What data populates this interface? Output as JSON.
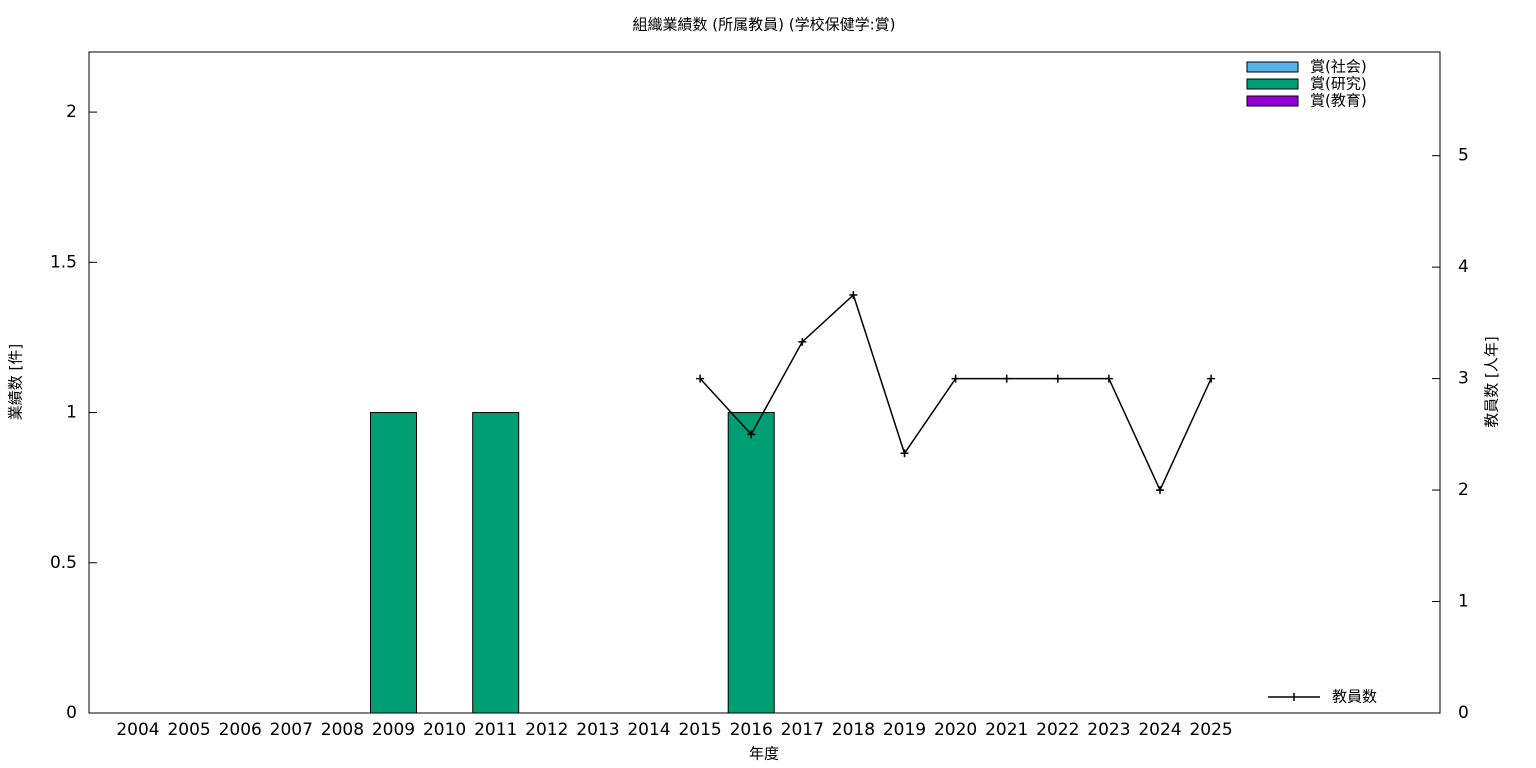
{
  "chart_data": {
    "type": "bar",
    "title": "組織業績数 (所属教員) (学校保健学:賞)",
    "x_label": "年度",
    "y_label": "業績数 [件]",
    "y2_label": "教員数 [人年]",
    "stacked": true,
    "categories": [
      "2004",
      "2005",
      "2006",
      "2007",
      "2008",
      "2009",
      "2010",
      "2011",
      "2012",
      "2013",
      "2014",
      "2015",
      "2016",
      "2017",
      "2018",
      "2019",
      "2020",
      "2021",
      "2022",
      "2023",
      "2024",
      "2025"
    ],
    "series": [
      {
        "name": "賞(社会)",
        "color": "#56b4e9",
        "values": [
          0,
          0,
          0,
          0,
          0,
          0,
          0,
          0,
          0,
          0,
          0,
          0,
          0,
          0,
          0,
          0,
          0,
          0,
          0,
          0,
          0,
          0
        ]
      },
      {
        "name": "賞(研究)",
        "color": "#009e73",
        "values": [
          0,
          0,
          0,
          0,
          0,
          1,
          0,
          1,
          0,
          0,
          0,
          0,
          1,
          0,
          0,
          0,
          0,
          0,
          0,
          0,
          0,
          0
        ]
      },
      {
        "name": "賞(教育)",
        "color": "#9400d3",
        "values": [
          0,
          0,
          0,
          0,
          0,
          0,
          0,
          0,
          0,
          0,
          0,
          0,
          0,
          0,
          0,
          0,
          0,
          0,
          0,
          0,
          0,
          0
        ]
      },
      {
        "name": "教員数",
        "type": "line",
        "axis": "y2",
        "color": "#000000",
        "values": [
          null,
          null,
          null,
          null,
          null,
          null,
          null,
          null,
          null,
          null,
          null,
          3,
          2.5,
          3.33,
          3.75,
          2.33,
          3,
          3,
          3,
          3,
          2,
          3
        ]
      }
    ],
    "ylim": [
      0,
      2.2
    ],
    "yticks": [
      0,
      0.5,
      1,
      1.5,
      2
    ],
    "y2lim": [
      0,
      5.93
    ],
    "y2ticks": [
      0,
      1,
      2,
      3,
      4,
      5
    ],
    "legend": "top-right"
  }
}
